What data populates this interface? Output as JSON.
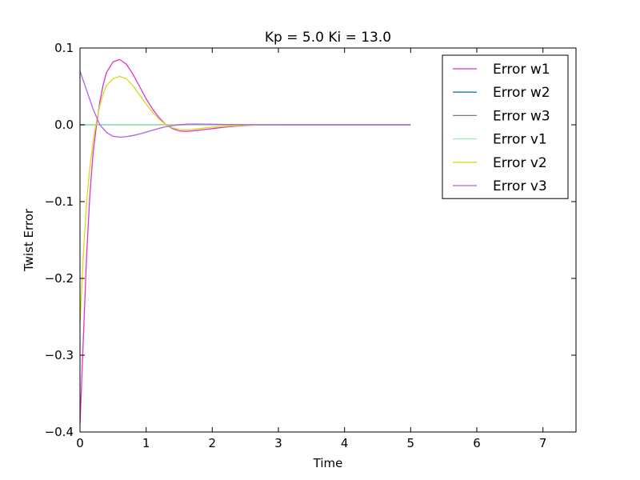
{
  "chart_data": {
    "type": "line",
    "title": "Kp = 5.0 Ki = 13.0",
    "xlabel": "Time",
    "ylabel": "Twist Error",
    "xlim": [
      0,
      7.5
    ],
    "ylim": [
      -0.4,
      0.1
    ],
    "xticks": [
      0,
      1,
      2,
      3,
      4,
      5,
      6,
      7
    ],
    "yticks": [
      0.1,
      0.0,
      -0.1,
      -0.2,
      -0.3,
      -0.4
    ],
    "ytick_labels": [
      "0.1",
      "0.0",
      "−0.1",
      "−0.2",
      "−0.3",
      "−0.4"
    ],
    "grid": false,
    "legend_position": "top-right",
    "series": [
      {
        "name": "Error w1",
        "color": "#e033c8",
        "x": [
          0,
          0.05,
          0.1,
          0.15,
          0.2,
          0.25,
          0.3,
          0.35,
          0.4,
          0.5,
          0.6,
          0.7,
          0.8,
          0.9,
          1.0,
          1.1,
          1.2,
          1.3,
          1.4,
          1.5,
          1.6,
          1.7,
          1.8,
          2.0,
          2.2,
          2.4,
          2.6,
          3.0,
          4.0,
          5.0
        ],
        "y": [
          -0.39,
          -0.28,
          -0.17,
          -0.09,
          -0.035,
          0.0,
          0.03,
          0.052,
          0.068,
          0.082,
          0.085,
          0.079,
          0.066,
          0.05,
          0.034,
          0.02,
          0.009,
          0.0,
          -0.005,
          -0.008,
          -0.0085,
          -0.008,
          -0.007,
          -0.005,
          -0.003,
          -0.0015,
          -0.0005,
          0.0,
          0.0,
          0.0
        ]
      },
      {
        "name": "Error w2",
        "color": "#1f77b4",
        "x": [
          0,
          1,
          2,
          3,
          4,
          5
        ],
        "y": [
          0,
          0,
          0,
          0,
          0,
          0
        ]
      },
      {
        "name": "Error w3",
        "color": "#8c7a6b",
        "x": [
          0,
          1,
          2,
          3,
          4,
          5
        ],
        "y": [
          0,
          0,
          0,
          0,
          0,
          0
        ]
      },
      {
        "name": "Error v1",
        "color": "#98f0b0",
        "x": [
          0,
          1,
          2,
          3,
          4,
          5
        ],
        "y": [
          0.0,
          0.0,
          0.0,
          0.0,
          0.0,
          0.0
        ]
      },
      {
        "name": "Error v2",
        "color": "#d4dc18",
        "x": [
          0,
          0.05,
          0.1,
          0.15,
          0.2,
          0.25,
          0.3,
          0.35,
          0.4,
          0.5,
          0.6,
          0.7,
          0.8,
          0.9,
          1.0,
          1.1,
          1.2,
          1.3,
          1.4,
          1.5,
          1.6,
          1.7,
          1.8,
          2.0,
          2.2,
          2.4,
          2.6,
          3.0,
          4.0,
          5.0
        ],
        "y": [
          -0.26,
          -0.17,
          -0.1,
          -0.055,
          -0.02,
          0.005,
          0.025,
          0.04,
          0.051,
          0.06,
          0.063,
          0.06,
          0.051,
          0.039,
          0.027,
          0.016,
          0.007,
          0.0,
          -0.004,
          -0.006,
          -0.0065,
          -0.006,
          -0.005,
          -0.003,
          -0.002,
          -0.001,
          -0.0003,
          0.0,
          0.0,
          0.0
        ]
      },
      {
        "name": "Error v3",
        "color": "#b45ee8",
        "x": [
          0,
          0.1,
          0.2,
          0.3,
          0.4,
          0.5,
          0.6,
          0.7,
          0.8,
          0.9,
          1.0,
          1.1,
          1.2,
          1.3,
          1.4,
          1.5,
          1.6,
          1.7,
          1.8,
          2.0,
          2.2,
          2.5,
          3.0,
          4.0,
          5.0
        ],
        "y": [
          0.07,
          0.045,
          0.02,
          0.0,
          -0.01,
          -0.015,
          -0.016,
          -0.0155,
          -0.014,
          -0.012,
          -0.0095,
          -0.007,
          -0.0045,
          -0.0025,
          -0.001,
          0.0,
          0.0007,
          0.001,
          0.001,
          0.0007,
          0.0004,
          0.0001,
          0.0,
          0.0,
          0.0
        ]
      }
    ]
  }
}
